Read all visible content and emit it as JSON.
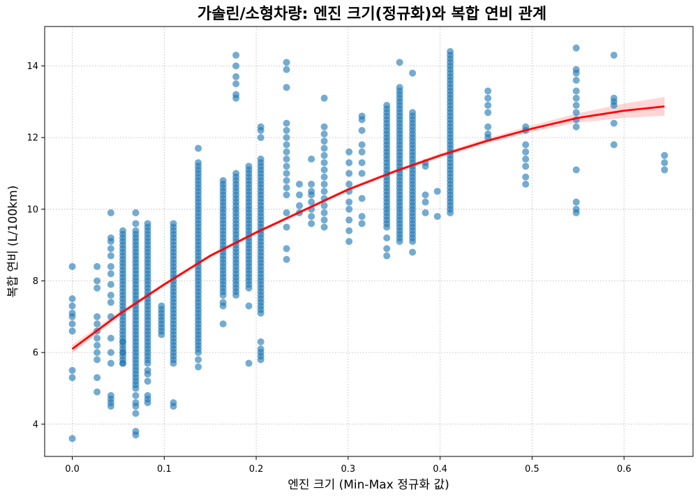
{
  "chart_data": {
    "type": "scatter",
    "title": "가솔린/소형차량: 엔진 크기(정규화)와 복합 연비 관계",
    "xlabel": "엔진 크기 (Min-Max 정규화 값)",
    "ylabel": "복합 연비 (L/100km)",
    "xlim": [
      -0.03,
      0.675
    ],
    "ylim": [
      3.1,
      15.1
    ],
    "xticks": [
      0.0,
      0.1,
      0.2,
      0.3,
      0.4,
      0.5,
      0.6
    ],
    "xtick_labels": [
      "0.0",
      "0.1",
      "0.2",
      "0.3",
      "0.4",
      "0.5",
      "0.6"
    ],
    "yticks": [
      4,
      6,
      8,
      10,
      12,
      14
    ],
    "ytick_labels": [
      "4",
      "6",
      "8",
      "10",
      "12",
      "14"
    ],
    "grid": true,
    "point_color": "#1f77b4",
    "trend_color": "#ff0000",
    "band_color": "#ffb3b3",
    "scatter_columns": [
      {
        "x": 0.0,
        "y": [
          3.6,
          5.3,
          5.5,
          6.6,
          6.8,
          7.0,
          7.1,
          7.3,
          7.5,
          8.4
        ]
      },
      {
        "x": 0.027,
        "y": [
          4.9,
          5.3,
          5.8,
          6.0,
          6.2,
          6.4,
          6.6,
          6.8,
          7.0,
          7.8,
          8.0,
          8.4
        ]
      },
      {
        "x": 0.042,
        "y": [
          4.5,
          4.6,
          4.7,
          4.8,
          5.7,
          6.0,
          6.4,
          7.0,
          7.4,
          7.6,
          7.9,
          8.2,
          8.4,
          8.7,
          8.9,
          9.1,
          9.2,
          9.9
        ]
      },
      {
        "x": 0.055,
        "y_range": [
          5.7,
          9.4
        ],
        "step": 0.1,
        "extra": [
          5.7,
          6.0,
          6.3
        ]
      },
      {
        "x": 0.069,
        "y_range": [
          5.0,
          9.4
        ],
        "step": 0.1,
        "extra": [
          3.7,
          3.8,
          4.3,
          4.5,
          4.6,
          4.8,
          9.6,
          9.9
        ]
      },
      {
        "x": 0.082,
        "y_range": [
          5.7,
          9.6
        ],
        "step": 0.1,
        "extra": [
          4.6,
          4.7,
          4.8,
          5.2,
          5.4,
          5.5
        ]
      },
      {
        "x": 0.097,
        "y_range": [
          6.5,
          7.3
        ],
        "step": 0.1,
        "extra": []
      },
      {
        "x": 0.11,
        "y_range": [
          5.7,
          9.6
        ],
        "step": 0.1,
        "extra": [
          4.5,
          4.6
        ]
      },
      {
        "x": 0.137,
        "y_range": [
          6.0,
          11.3
        ],
        "step": 0.1,
        "extra": [
          5.6,
          5.8,
          11.7
        ]
      },
      {
        "x": 0.164,
        "y_range": [
          7.6,
          10.8
        ],
        "step": 0.1,
        "extra": [
          6.8,
          7.3,
          7.4
        ]
      },
      {
        "x": 0.178,
        "y_range": [
          7.6,
          11.0
        ],
        "step": 0.1,
        "extra": [
          13.1,
          13.2,
          13.5,
          13.7,
          14.0,
          14.3
        ]
      },
      {
        "x": 0.192,
        "y_range": [
          7.8,
          11.2
        ],
        "step": 0.1,
        "extra": [
          5.7,
          7.3
        ]
      },
      {
        "x": 0.205,
        "y_range": [
          7.1,
          11.4
        ],
        "step": 0.1,
        "extra": [
          5.8,
          5.9,
          6.0,
          6.1,
          6.3,
          12.0,
          12.2,
          12.3
        ]
      },
      {
        "x": 0.233,
        "y_range": [
          10.4,
          12.4
        ],
        "step": 0.2,
        "extra": [
          8.6,
          8.9,
          9.5,
          9.9,
          13.4,
          13.9,
          14.1
        ]
      },
      {
        "x": 0.247,
        "y": [
          9.9,
          10.1,
          10.4,
          10.7
        ]
      },
      {
        "x": 0.26,
        "y": [
          9.6,
          9.8,
          10.0,
          10.2,
          10.4,
          10.5,
          10.7,
          11.4
        ]
      },
      {
        "x": 0.274,
        "y_range": [
          9.5,
          12.4
        ],
        "step": 0.2,
        "extra": [
          13.1
        ]
      },
      {
        "x": 0.301,
        "y": [
          9.1,
          9.4,
          9.7,
          10.0,
          10.2,
          10.5,
          10.7,
          11.0,
          11.3,
          11.6
        ]
      },
      {
        "x": 0.315,
        "y": [
          9.6,
          9.8,
          10.3,
          11.0,
          11.3,
          11.6,
          11.8,
          12.2,
          12.5,
          12.6
        ]
      },
      {
        "x": 0.342,
        "y_range": [
          9.5,
          12.9
        ],
        "step": 0.1,
        "extra": [
          8.7,
          8.9,
          9.2
        ]
      },
      {
        "x": 0.356,
        "y_range": [
          9.1,
          13.4
        ],
        "step": 0.1,
        "extra": [
          14.1
        ]
      },
      {
        "x": 0.37,
        "y_range": [
          9.1,
          12.7
        ],
        "step": 0.1,
        "extra": [
          8.8,
          13.8
        ]
      },
      {
        "x": 0.384,
        "y": [
          9.9,
          10.2,
          10.4,
          11.2,
          11.3
        ]
      },
      {
        "x": 0.397,
        "y": [
          9.8,
          10.5
        ]
      },
      {
        "x": 0.411,
        "y_range": [
          9.9,
          14.4
        ],
        "step": 0.1,
        "extra": []
      },
      {
        "x": 0.452,
        "y": [
          12.0,
          12.1,
          12.3,
          12.7,
          12.9,
          13.1,
          13.3
        ]
      },
      {
        "x": 0.493,
        "y": [
          10.7,
          10.9,
          11.2,
          11.4,
          11.6,
          11.8,
          12.2,
          12.3
        ]
      },
      {
        "x": 0.548,
        "y": [
          9.9,
          10.0,
          10.2,
          11.1,
          12.3,
          12.5,
          12.7,
          12.9,
          13.1,
          13.3,
          13.6,
          13.8,
          13.9,
          14.5
        ]
      },
      {
        "x": 0.589,
        "y": [
          11.8,
          12.4,
          12.9,
          13.0,
          13.1,
          14.3
        ]
      },
      {
        "x": 0.644,
        "y": [
          11.1,
          11.3,
          11.5
        ]
      }
    ],
    "trend_line": {
      "x": [
        0.0,
        0.05,
        0.1,
        0.15,
        0.2,
        0.25,
        0.3,
        0.35,
        0.4,
        0.45,
        0.5,
        0.55,
        0.6,
        0.644
      ],
      "y": [
        6.1,
        7.05,
        7.9,
        8.7,
        9.35,
        9.95,
        10.55,
        11.05,
        11.5,
        11.9,
        12.25,
        12.55,
        12.75,
        12.87
      ],
      "band_halfwidth": [
        0.12,
        0.07,
        0.05,
        0.05,
        0.05,
        0.05,
        0.05,
        0.05,
        0.06,
        0.07,
        0.09,
        0.13,
        0.2,
        0.26
      ]
    }
  }
}
